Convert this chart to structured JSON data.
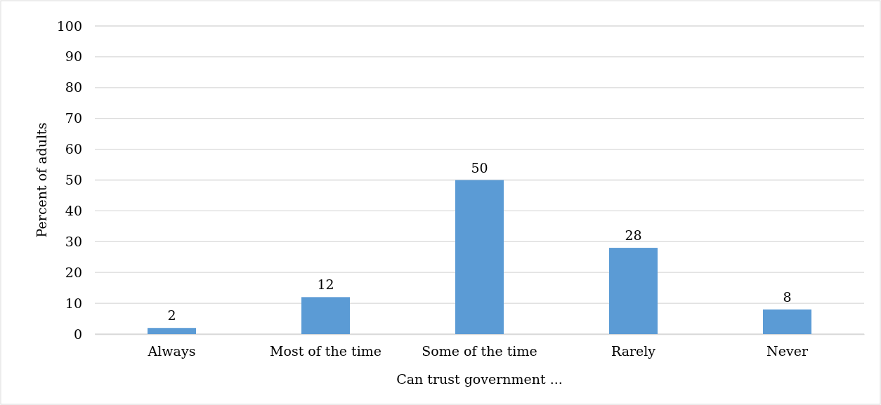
{
  "chart_data": {
    "type": "bar",
    "xlabel": "Can trust government ...",
    "ylabel": "Percent of adults",
    "categories": [
      "Always",
      "Most of the time",
      "Some of the time",
      "Rarely",
      "Never"
    ],
    "values": [
      2,
      12,
      50,
      28,
      8
    ],
    "color": "#5b9bd5",
    "ylim": [
      0,
      100
    ],
    "yticks": [
      0,
      10,
      20,
      30,
      40,
      50,
      60,
      70,
      80,
      90,
      100
    ],
    "grid": "y",
    "data_labels": true
  }
}
